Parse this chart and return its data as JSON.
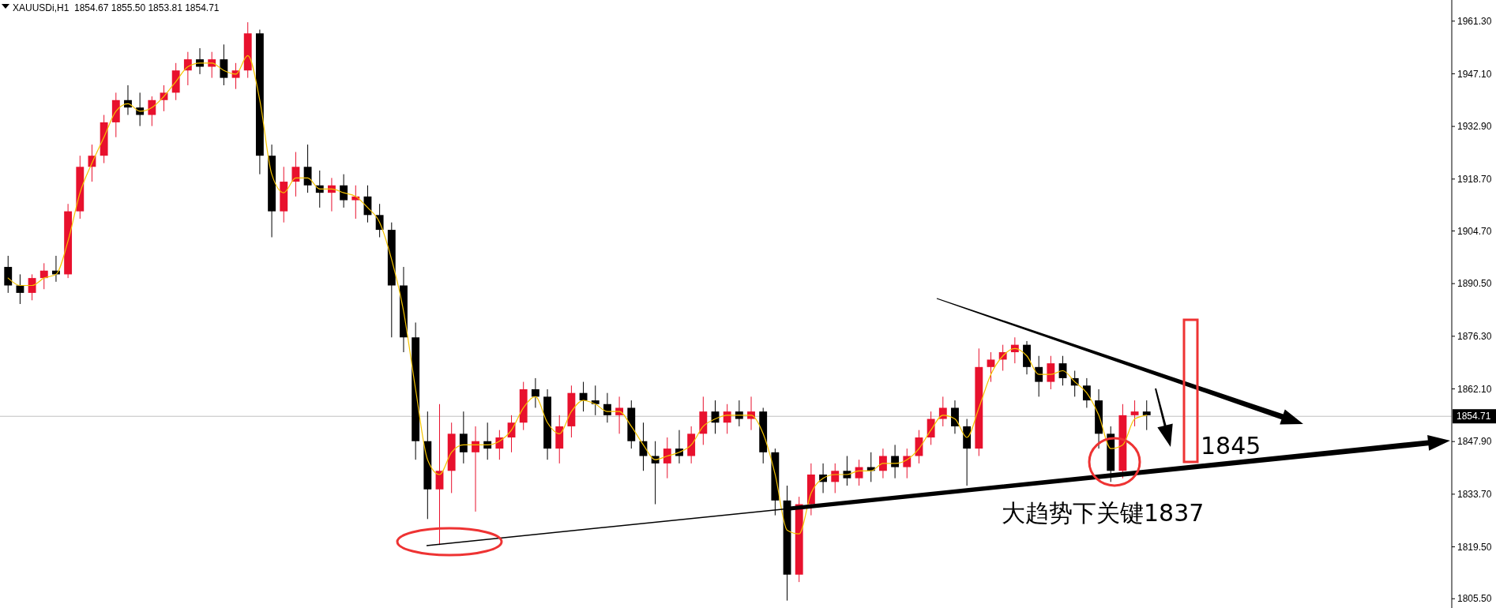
{
  "chart_data": {
    "type": "candlestick",
    "title": "XAUUSDi,H1  1854.67 1855.50 1853.81 1854.71",
    "categories": [
      null,
      null,
      null,
      null,
      null,
      null,
      null,
      null,
      null,
      null,
      null,
      null,
      null,
      null,
      null,
      null,
      null,
      null,
      null,
      null,
      null,
      null,
      null,
      null,
      null,
      null,
      null,
      null,
      null,
      null,
      null,
      null,
      null,
      null,
      null,
      null,
      null,
      null,
      null,
      null,
      null,
      null,
      null,
      null,
      null,
      null,
      null,
      null,
      null,
      null,
      null,
      null,
      null,
      null,
      null,
      null,
      null,
      null,
      null,
      null,
      null,
      null,
      null,
      null,
      null,
      null,
      null,
      null,
      null,
      null,
      null,
      null,
      null,
      null,
      null,
      null,
      null,
      null,
      null,
      null,
      null,
      null,
      null,
      null,
      null,
      null,
      null,
      null,
      null,
      null,
      null,
      null,
      null,
      null,
      null,
      null
    ],
    "ohlc": [
      [
        1895,
        1898,
        1888,
        1890
      ],
      [
        1890,
        1893,
        1885,
        1888
      ],
      [
        1888,
        1893,
        1886,
        1892
      ],
      [
        1892,
        1896,
        1889,
        1894
      ],
      [
        1894,
        1898,
        1891,
        1893
      ],
      [
        1893,
        1912,
        1892,
        1910
      ],
      [
        1910,
        1925,
        1908,
        1922
      ],
      [
        1922,
        1928,
        1918,
        1925
      ],
      [
        1925,
        1936,
        1923,
        1934
      ],
      [
        1934,
        1942,
        1930,
        1940
      ],
      [
        1940,
        1944,
        1936,
        1938
      ],
      [
        1938,
        1942,
        1933,
        1936
      ],
      [
        1936,
        1941,
        1933,
        1940
      ],
      [
        1940,
        1944,
        1937,
        1942
      ],
      [
        1942,
        1950,
        1940,
        1948
      ],
      [
        1948,
        1953,
        1944,
        1951
      ],
      [
        1951,
        1954,
        1947,
        1949
      ],
      [
        1949,
        1953,
        1946,
        1951
      ],
      [
        1951,
        1955,
        1944,
        1946
      ],
      [
        1946,
        1950,
        1943,
        1948
      ],
      [
        1948,
        1961,
        1946,
        1958
      ],
      [
        1958,
        1959,
        1920,
        1925
      ],
      [
        1925,
        1928,
        1903,
        1910
      ],
      [
        1910,
        1922,
        1907,
        1918
      ],
      [
        1918,
        1926,
        1914,
        1922
      ],
      [
        1922,
        1928,
        1915,
        1917
      ],
      [
        1917,
        1921,
        1911,
        1915
      ],
      [
        1915,
        1919,
        1910,
        1917
      ],
      [
        1917,
        1920,
        1911,
        1913
      ],
      [
        1913,
        1917,
        1908,
        1914
      ],
      [
        1914,
        1917,
        1907,
        1909
      ],
      [
        1909,
        1912,
        1903,
        1905
      ],
      [
        1905,
        1907,
        1876,
        1890
      ],
      [
        1890,
        1895,
        1872,
        1876
      ],
      [
        1876,
        1880,
        1843,
        1848
      ],
      [
        1848,
        1856,
        1827,
        1835
      ],
      [
        1835,
        1858,
        1820,
        1840
      ],
      [
        1840,
        1853,
        1834,
        1850
      ],
      [
        1850,
        1856,
        1842,
        1845
      ],
      [
        1845,
        1852,
        1829,
        1848
      ],
      [
        1848,
        1853,
        1843,
        1846
      ],
      [
        1846,
        1851,
        1843,
        1849
      ],
      [
        1849,
        1855,
        1845,
        1853
      ],
      [
        1853,
        1864,
        1851,
        1862
      ],
      [
        1862,
        1865,
        1857,
        1860
      ],
      [
        1860,
        1862,
        1843,
        1846
      ],
      [
        1846,
        1855,
        1842,
        1852
      ],
      [
        1852,
        1863,
        1849,
        1861
      ],
      [
        1861,
        1864,
        1856,
        1859
      ],
      [
        1859,
        1863,
        1855,
        1858
      ],
      [
        1858,
        1861,
        1853,
        1855
      ],
      [
        1855,
        1860,
        1850,
        1857
      ],
      [
        1857,
        1859,
        1846,
        1848
      ],
      [
        1848,
        1853,
        1840,
        1844
      ],
      [
        1844,
        1848,
        1831,
        1842
      ],
      [
        1842,
        1849,
        1838,
        1846
      ],
      [
        1846,
        1851,
        1842,
        1844
      ],
      [
        1844,
        1852,
        1842,
        1850
      ],
      [
        1850,
        1860,
        1847,
        1856
      ],
      [
        1856,
        1859,
        1850,
        1853
      ],
      [
        1853,
        1858,
        1850,
        1856
      ],
      [
        1856,
        1859,
        1852,
        1854
      ],
      [
        1854,
        1860,
        1851,
        1856
      ],
      [
        1856,
        1857,
        1842,
        1845
      ],
      [
        1845,
        1846,
        1828,
        1832
      ],
      [
        1832,
        1836,
        1805,
        1812
      ],
      [
        1812,
        1833,
        1810,
        1831
      ],
      [
        1831,
        1842,
        1828,
        1839
      ],
      [
        1839,
        1842,
        1834,
        1837
      ],
      [
        1837,
        1842,
        1834,
        1840
      ],
      [
        1840,
        1844,
        1836,
        1838
      ],
      [
        1838,
        1843,
        1836,
        1841
      ],
      [
        1841,
        1845,
        1837,
        1840
      ],
      [
        1840,
        1846,
        1838,
        1844
      ],
      [
        1844,
        1847,
        1838,
        1841
      ],
      [
        1841,
        1846,
        1838,
        1844
      ],
      [
        1844,
        1851,
        1842,
        1849
      ],
      [
        1849,
        1856,
        1847,
        1854
      ],
      [
        1854,
        1860,
        1852,
        1857
      ],
      [
        1857,
        1859,
        1850,
        1852
      ],
      [
        1852,
        1854,
        1836,
        1846
      ],
      [
        1846,
        1873,
        1844,
        1868
      ],
      [
        1868,
        1872,
        1864,
        1870
      ],
      [
        1870,
        1874,
        1867,
        1872
      ],
      [
        1872,
        1876,
        1869,
        1874
      ],
      [
        1874,
        1875,
        1866,
        1868
      ],
      [
        1868,
        1871,
        1860,
        1864
      ],
      [
        1864,
        1871,
        1862,
        1869
      ],
      [
        1869,
        1871,
        1863,
        1865
      ],
      [
        1865,
        1867,
        1860,
        1863
      ],
      [
        1863,
        1865,
        1857,
        1859
      ],
      [
        1859,
        1862,
        1846,
        1850
      ],
      [
        1850,
        1852,
        1837,
        1840
      ],
      [
        1840,
        1858,
        1838,
        1855
      ],
      [
        1855,
        1859,
        1852,
        1856
      ],
      [
        1856,
        1859,
        1851,
        1855
      ]
    ],
    "colors": [
      "#000000",
      "#000000",
      "#e8112d",
      "#e8112d",
      "#000000",
      "#e8112d",
      "#e8112d",
      "#e8112d",
      "#e8112d",
      "#e8112d",
      "#000000",
      "#000000",
      "#e8112d",
      "#e8112d",
      "#e8112d",
      "#e8112d",
      "#000000",
      "#e8112d",
      "#000000",
      "#e8112d",
      "#e8112d",
      "#000000",
      "#000000",
      "#e8112d",
      "#e8112d",
      "#000000",
      "#000000",
      "#e8112d",
      "#000000",
      "#e8112d",
      "#000000",
      "#000000",
      "#000000",
      "#000000",
      "#000000",
      "#000000",
      "#e8112d",
      "#e8112d",
      "#000000",
      "#e8112d",
      "#000000",
      "#e8112d",
      "#e8112d",
      "#e8112d",
      "#000000",
      "#000000",
      "#e8112d",
      "#e8112d",
      "#000000",
      "#000000",
      "#000000",
      "#e8112d",
      "#000000",
      "#000000",
      "#000000",
      "#e8112d",
      "#000000",
      "#e8112d",
      "#e8112d",
      "#000000",
      "#e8112d",
      "#000000",
      "#e8112d",
      "#000000",
      "#000000",
      "#000000",
      "#e8112d",
      "#e8112d",
      "#000000",
      "#e8112d",
      "#000000",
      "#e8112d",
      "#000000",
      "#e8112d",
      "#000000",
      "#e8112d",
      "#e8112d",
      "#e8112d",
      "#e8112d",
      "#000000",
      "#000000",
      "#e8112d",
      "#e8112d",
      "#e8112d",
      "#e8112d",
      "#000000",
      "#000000",
      "#e8112d",
      "#000000",
      "#000000",
      "#000000",
      "#000000",
      "#000000",
      "#e8112d",
      "#e8112d",
      "#000000"
    ],
    "series": [
      {
        "type": "line",
        "color": "#f5c400",
        "values": [
          1892,
          1890,
          1890,
          1892,
          1893,
          1902,
          1915,
          1923,
          1930,
          1937,
          1939,
          1937,
          1938,
          1941,
          1945,
          1949,
          1950,
          1950,
          1948,
          1947,
          1952,
          1940,
          1920,
          1915,
          1919,
          1919,
          1916,
          1916,
          1915,
          1914,
          1911,
          1907,
          1897,
          1883,
          1862,
          1843,
          1839,
          1845,
          1847,
          1847,
          1847,
          1848,
          1851,
          1857,
          1860,
          1853,
          1850,
          1856,
          1859,
          1858,
          1856,
          1856,
          1852,
          1847,
          1843,
          1844,
          1845,
          1847,
          1852,
          1854,
          1855,
          1855,
          1855,
          1850,
          1839,
          1824,
          1823,
          1834,
          1838,
          1839,
          1839,
          1840,
          1840,
          1842,
          1842,
          1843,
          1846,
          1851,
          1855,
          1854,
          1849,
          1857,
          1866,
          1871,
          1873,
          1871,
          1866,
          1866,
          1867,
          1864,
          1861,
          1855,
          1846,
          1847,
          1854,
          1855
        ]
      }
    ],
    "ylim": [
      1803,
      1967
    ],
    "yticks": [
      {
        "value": 1961.3,
        "label": "1961.30"
      },
      {
        "value": 1947.1,
        "label": "1947.10"
      },
      {
        "value": 1932.9,
        "label": "1932.90"
      },
      {
        "value": 1918.7,
        "label": "1918.70"
      },
      {
        "value": 1904.7,
        "label": "1904.70"
      },
      {
        "value": 1890.5,
        "label": "1890.50"
      },
      {
        "value": 1876.3,
        "label": "1876.30"
      },
      {
        "value": 1862.1,
        "label": "1862.10"
      },
      {
        "value": 1847.9,
        "label": "1847.90"
      },
      {
        "value": 1833.7,
        "label": "1833.70"
      },
      {
        "value": 1819.5,
        "label": "1819.50"
      },
      {
        "value": 1805.5,
        "label": "1805.50"
      }
    ],
    "ref_lines": [
      {
        "axis": "y",
        "value": 1854.71,
        "label": "1854.71",
        "color": "#c0c0c0"
      }
    ],
    "annotations": [
      "1845",
      "大趋势下关键1837"
    ]
  }
}
